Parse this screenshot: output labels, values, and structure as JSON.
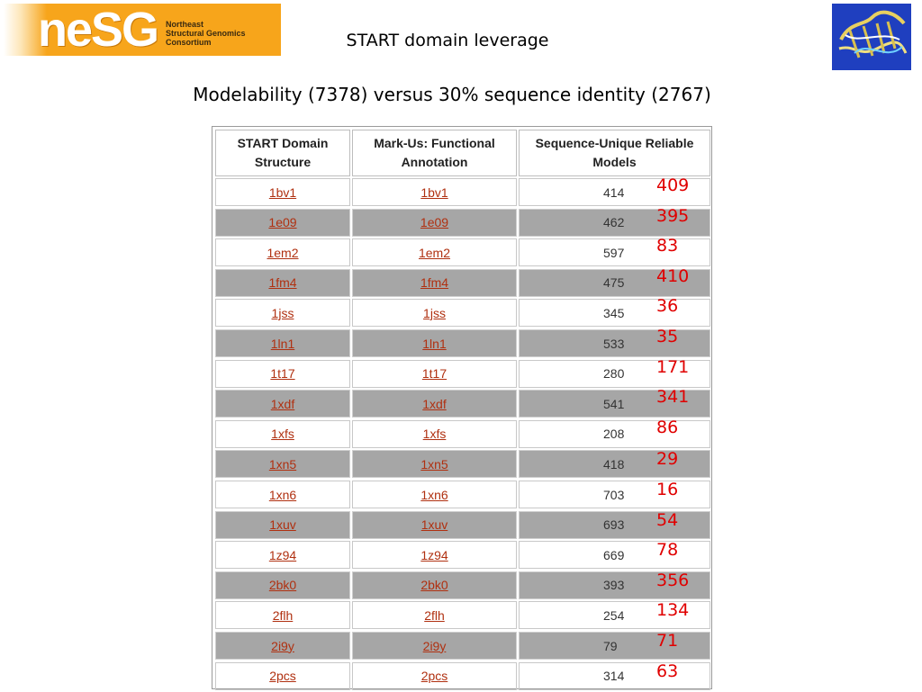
{
  "logo": {
    "word": "neSG",
    "subtitle": [
      "Northeast",
      "Structural Genomics",
      "Consortium"
    ]
  },
  "titles": {
    "main": "START domain leverage",
    "subtitle": "Modelability (7378) versus 30% sequence identity (2767)"
  },
  "table": {
    "headers": [
      "START Domain Structure",
      "Mark-Us: Functional Annotation",
      "Sequence-Unique Reliable Models"
    ],
    "rows": [
      {
        "structure": "1bv1",
        "annotation": "1bv1",
        "models": "414",
        "overlay": "409"
      },
      {
        "structure": "1e09",
        "annotation": "1e09",
        "models": "462",
        "overlay": "395"
      },
      {
        "structure": "1em2",
        "annotation": "1em2",
        "models": "597",
        "overlay": "83"
      },
      {
        "structure": "1fm4",
        "annotation": "1fm4",
        "models": "475",
        "overlay": "410"
      },
      {
        "structure": "1jss",
        "annotation": "1jss",
        "models": "345",
        "overlay": "36"
      },
      {
        "structure": "1ln1",
        "annotation": "1ln1",
        "models": "533",
        "overlay": "35"
      },
      {
        "structure": "1t17",
        "annotation": "1t17",
        "models": "280",
        "overlay": "171"
      },
      {
        "structure": "1xdf",
        "annotation": "1xdf",
        "models": "541",
        "overlay": "341"
      },
      {
        "structure": "1xfs",
        "annotation": "1xfs",
        "models": "208",
        "overlay": "86"
      },
      {
        "structure": "1xn5",
        "annotation": "1xn5",
        "models": "418",
        "overlay": "29"
      },
      {
        "structure": "1xn6",
        "annotation": "1xn6",
        "models": "703",
        "overlay": "16"
      },
      {
        "structure": "1xuv",
        "annotation": "1xuv",
        "models": "693",
        "overlay": "54"
      },
      {
        "structure": "1z94",
        "annotation": "1z94",
        "models": "669",
        "overlay": "78"
      },
      {
        "structure": "2bk0",
        "annotation": "2bk0",
        "models": "393",
        "overlay": "356"
      },
      {
        "structure": "2flh",
        "annotation": "2flh",
        "models": "254",
        "overlay": "134"
      },
      {
        "structure": "2i9y",
        "annotation": "2i9y",
        "models": "79",
        "overlay": "71"
      },
      {
        "structure": "2pcs",
        "annotation": "2pcs",
        "models": "314",
        "overlay": "63"
      }
    ]
  },
  "colors": {
    "link": "#b03010",
    "overlay_number": "#e00000",
    "shaded_row": "#a6a6a6",
    "logo_orange": "#f7a51b"
  }
}
